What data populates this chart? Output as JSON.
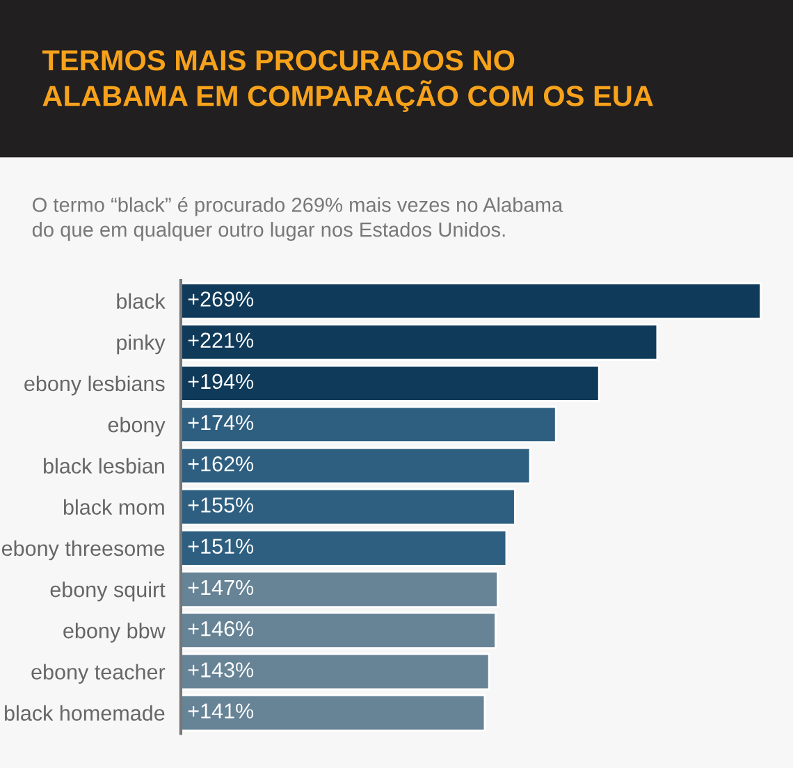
{
  "chart_data": {
    "type": "bar",
    "orientation": "horizontal",
    "title": "TERMOS MAIS PROCURADOS NO\nALABAMA EM COMPARAÇÃO COM OS EUA",
    "subtitle": "O termo “black” é procurado 269% mais vezes no Alabama\ndo que em qualquer outro lugar nos Estados Unidos.",
    "categories": [
      "black",
      "pinky",
      "ebony lesbians",
      "ebony",
      "black lesbian",
      "black mom",
      "ebony threesome",
      "ebony squirt",
      "ebony bbw",
      "ebony teacher",
      "black homemade"
    ],
    "values": [
      269,
      221,
      194,
      174,
      162,
      155,
      151,
      147,
      146,
      143,
      141
    ],
    "value_labels": [
      "+269%",
      "+221%",
      "+194%",
      "+174%",
      "+162%",
      "+155%",
      "+151%",
      "+147%",
      "+146%",
      "+143%",
      "+141%"
    ],
    "colors": [
      "#0f3a5a",
      "#0f3a5a",
      "#0f3a5a",
      "#2e5f80",
      "#2e5f80",
      "#2e5f80",
      "#2e5f80",
      "#678396",
      "#678396",
      "#678396",
      "#678396"
    ],
    "grid": false,
    "legend": false
  }
}
